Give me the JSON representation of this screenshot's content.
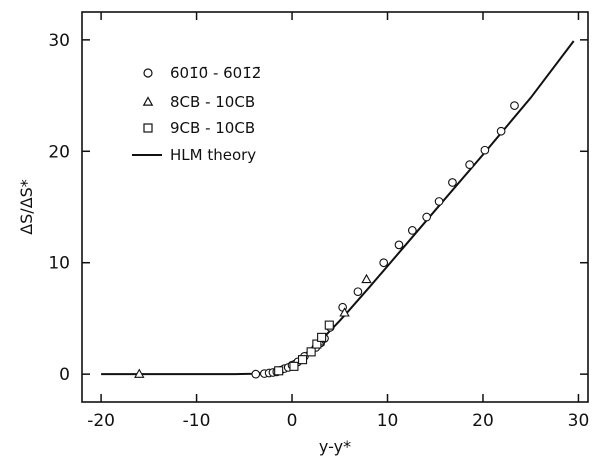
{
  "chart_data": {
    "type": "scatter",
    "title": "",
    "xlabel": "y-y*",
    "ylabel": "ΔS/ΔS*",
    "xlim": [
      -22,
      31
    ],
    "ylim": [
      -2.5,
      32.5
    ],
    "xticks": [
      -20,
      -10,
      0,
      10,
      20,
      30
    ],
    "yticks": [
      0,
      10,
      20,
      30
    ],
    "xtick_labels": [
      "-20",
      "-10",
      "0",
      "10",
      "20",
      "30"
    ],
    "ytick_labels": [
      "0",
      "10",
      "20",
      "30"
    ],
    "grid": false,
    "legend_position": "top-left",
    "series": [
      {
        "name": "6̄01̄0̄ - 6̄01̄2̄",
        "marker": "circle",
        "x": [
          -3.8,
          -2.9,
          -2.4,
          -2.0,
          -1.6,
          -1.2,
          -0.8,
          -0.4,
          0.0,
          0.3,
          0.6,
          1.3,
          2.0,
          2.5,
          3.0,
          3.4,
          4.0,
          5.3,
          6.9,
          9.6,
          11.2,
          12.6,
          14.1,
          15.4,
          16.8,
          18.6,
          20.2,
          21.9,
          23.3
        ],
        "y": [
          0.0,
          0.05,
          0.1,
          0.15,
          0.2,
          0.35,
          0.5,
          0.6,
          0.8,
          0.9,
          1.1,
          1.6,
          2.0,
          2.4,
          2.8,
          3.2,
          4.2,
          6.0,
          7.4,
          10.0,
          11.6,
          12.9,
          14.1,
          15.5,
          17.2,
          18.8,
          20.1,
          21.8,
          24.1
        ]
      },
      {
        "name": "8CB - 10CB",
        "marker": "triangle",
        "x": [
          -16.0,
          2.9,
          5.5,
          7.8
        ],
        "y": [
          0.0,
          2.9,
          5.5,
          8.5
        ]
      },
      {
        "name": "9CB - 10CB",
        "marker": "square",
        "x": [
          -1.4,
          0.2,
          1.1,
          2.0,
          2.6,
          3.1,
          3.9
        ],
        "y": [
          0.3,
          0.7,
          1.3,
          2.0,
          2.7,
          3.3,
          4.4
        ]
      }
    ],
    "theory": {
      "name": "HLM theory",
      "x": [
        -20,
        -12,
        -8,
        -6,
        -4,
        -3,
        -2,
        -1.5,
        -1,
        -0.5,
        0,
        0.5,
        1,
        1.5,
        2,
        2.5,
        3,
        3.5,
        4,
        5,
        6,
        8,
        10,
        12,
        15,
        20,
        25,
        29.5
      ],
      "y": [
        0,
        0,
        0,
        0.003,
        0.04,
        0.1,
        0.23,
        0.34,
        0.5,
        0.7,
        0.95,
        1.23,
        1.55,
        1.9,
        2.27,
        2.65,
        3.05,
        3.47,
        3.9,
        4.8,
        5.75,
        7.7,
        9.7,
        11.7,
        14.7,
        19.7,
        24.8,
        29.9
      ]
    }
  }
}
